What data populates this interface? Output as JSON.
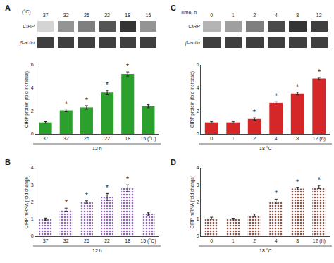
{
  "chart_data": [
    {
      "type": "heatmap",
      "title": "A",
      "xlabel": "(°C)",
      "categories": [
        "37",
        "32",
        "25",
        "22",
        "18",
        "15"
      ],
      "series": [
        {
          "name": "CIRP",
          "values": [
            0.15,
            0.45,
            0.55,
            0.75,
            0.9,
            0.45
          ]
        },
        {
          "name": "β-actin",
          "values": [
            0.85,
            0.85,
            0.85,
            0.85,
            0.85,
            0.85
          ]
        }
      ],
      "color_range": [
        0,
        1
      ]
    },
    {
      "type": "heatmap",
      "title": "C",
      "xlabel": "Time, h",
      "categories": [
        "0",
        "1",
        "2",
        "4",
        "8",
        "12"
      ],
      "series": [
        {
          "name": "CIRP",
          "values": [
            0.3,
            0.4,
            0.55,
            0.8,
            0.9,
            0.85
          ]
        },
        {
          "name": "β-actin",
          "values": [
            0.85,
            0.85,
            0.85,
            0.85,
            0.85,
            0.85
          ]
        }
      ],
      "color_range": [
        0,
        1
      ]
    },
    {
      "type": "bar",
      "xlabel": "12 h",
      "ylabel": "CIRP protein (fold increase)",
      "categories": [
        "37",
        "32",
        "25",
        "22",
        "18",
        "15 (°C)"
      ],
      "values": [
        1.0,
        2.05,
        2.3,
        3.6,
        5.2,
        2.4
      ],
      "errors": [
        0.07,
        0.12,
        0.15,
        0.2,
        0.18,
        0.13
      ],
      "ylim": [
        0,
        6
      ],
      "yticks": [
        0,
        2,
        4,
        6
      ],
      "grid": false,
      "annotations": [
        {
          "x": "32",
          "text": "*"
        },
        {
          "x": "25",
          "text": "*"
        },
        {
          "x": "22",
          "text": "*"
        },
        {
          "x": "18",
          "text": "*"
        }
      ]
    },
    {
      "type": "bar",
      "xlabel": "18 °C",
      "ylabel": "CIRP protein (fold increase)",
      "categories": [
        "0",
        "1",
        "2",
        "4",
        "8",
        "12 (h)"
      ],
      "values": [
        1.0,
        1.0,
        1.3,
        2.7,
        3.5,
        4.8
      ],
      "errors": [
        0.06,
        0.06,
        0.1,
        0.1,
        0.12,
        0.1
      ],
      "ylim": [
        0,
        6
      ],
      "yticks": [
        0,
        2,
        4,
        6
      ],
      "grid": false,
      "annotations": [
        {
          "x": "2",
          "text": "*"
        },
        {
          "x": "4",
          "text": "*"
        },
        {
          "x": "8",
          "text": "*"
        },
        {
          "x": "12 (h)",
          "text": "*"
        }
      ]
    },
    {
      "type": "bar",
      "title": "B",
      "xlabel": "12 h",
      "ylabel": "CIRP mRNA (fold change)",
      "categories": [
        "37",
        "32",
        "25",
        "22",
        "18",
        "15 (°C)"
      ],
      "values": [
        1.0,
        1.55,
        2.0,
        2.3,
        2.8,
        1.3
      ],
      "errors": [
        0.06,
        0.09,
        0.07,
        0.2,
        0.2,
        0.07
      ],
      "ylim": [
        0,
        4
      ],
      "yticks": [
        0,
        1,
        2,
        3,
        4
      ],
      "grid": false,
      "marker": "dots",
      "annotations": [
        {
          "x": "32",
          "text": "*"
        },
        {
          "x": "25",
          "text": "*"
        },
        {
          "x": "22",
          "text": "*"
        },
        {
          "x": "18",
          "text": "*"
        }
      ]
    },
    {
      "type": "bar",
      "title": "D",
      "xlabel": "18 °C",
      "ylabel": "CIRP mRNA (fold change)",
      "categories": [
        "0",
        "1",
        "2",
        "4",
        "8",
        "12 (h)"
      ],
      "values": [
        1.05,
        1.0,
        1.22,
        2.05,
        2.78,
        2.88
      ],
      "errors": [
        0.06,
        0.05,
        0.07,
        0.12,
        0.08,
        0.09
      ],
      "ylim": [
        0,
        4
      ],
      "yticks": [
        0,
        1,
        2,
        3,
        4
      ],
      "grid": false,
      "marker": "dots",
      "annotations": [
        {
          "x": "4",
          "text": "*"
        },
        {
          "x": "8",
          "text": "*"
        },
        {
          "x": "12 (h)",
          "text": "*"
        }
      ]
    }
  ]
}
